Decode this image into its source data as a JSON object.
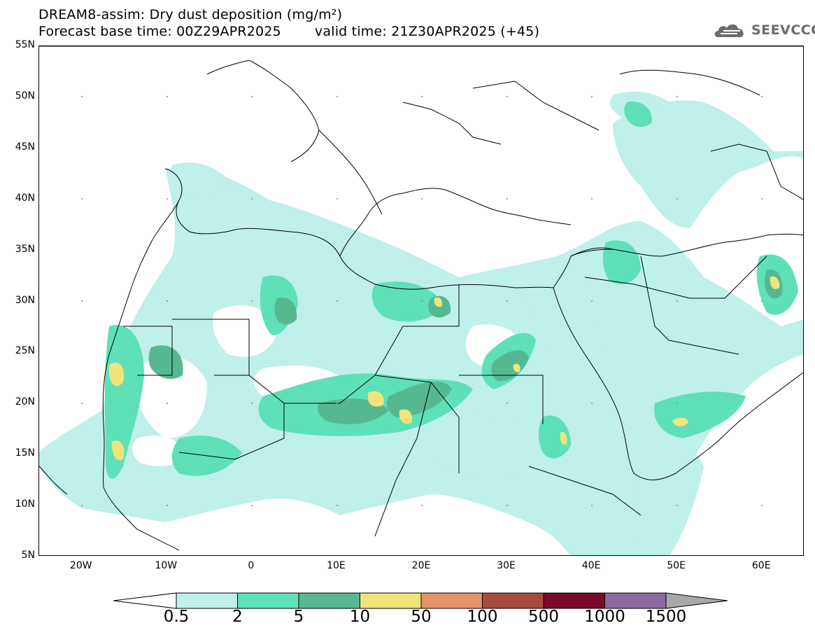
{
  "header": {
    "title": "DREAM8-assim: Dry dust deposition (mg/m²)",
    "base_time": "Forecast base time: 00Z29APR2025",
    "valid_time": "valid time: 21Z30APR2025 (+45)"
  },
  "logo": {
    "text": "SEEVCCC",
    "icon": "cloud-icon"
  },
  "map": {
    "lat_labels": [
      "55N",
      "50N",
      "45N",
      "40N",
      "35N",
      "30N",
      "25N",
      "20N",
      "15N",
      "10N",
      "5N"
    ],
    "lon_labels": [
      "20W",
      "10W",
      "0",
      "10E",
      "20E",
      "30E",
      "40E",
      "50E",
      "60E"
    ],
    "lon_range": [
      -25,
      65
    ],
    "lat_range": [
      5,
      55
    ],
    "ocean_color": "#ffffff",
    "land_border_color": "#000000"
  },
  "legend": {
    "labels": [
      "0.5",
      "2",
      "5",
      "10",
      "50",
      "100",
      "500",
      "1000",
      "1500"
    ],
    "colors": [
      "#bff0ea",
      "#5ee0b8",
      "#56b890",
      "#f1e47a",
      "#e8906a",
      "#a84a3e",
      "#7a0a2a",
      "#8a6aa0",
      "#a8a8a8"
    ],
    "under_color": "#ffffff"
  }
}
